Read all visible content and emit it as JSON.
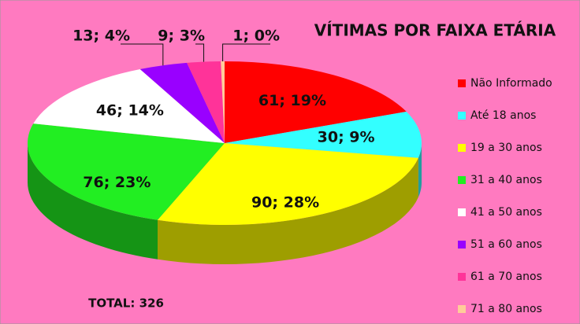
{
  "chart_data": {
    "type": "pie3d",
    "title": "VÍTIMAS POR FAIXA ETÁRIA",
    "annotation": "TOTAL: 326",
    "categories": [
      "Não Informado",
      "Até 18 anos",
      "19 a 30 anos",
      "31 a 40 anos",
      "41 a 50 anos",
      "51 a 60 anos",
      "61 a 70 anos",
      "71 a 80 anos"
    ],
    "values": [
      61,
      30,
      90,
      76,
      46,
      13,
      9,
      1
    ],
    "value_labels": [
      "61; 19%",
      "30; 9%",
      "90; 28%",
      "76; 23%",
      "46; 14%",
      "13; 4%",
      "9; 3%",
      "1; 0%"
    ],
    "colors": [
      "#ff0000",
      "#33ffff",
      "#ffff00",
      "#22ee22",
      "#ffffff",
      "#9900ff",
      "#ff3399",
      "#ffcc99"
    ],
    "legend": "right"
  }
}
